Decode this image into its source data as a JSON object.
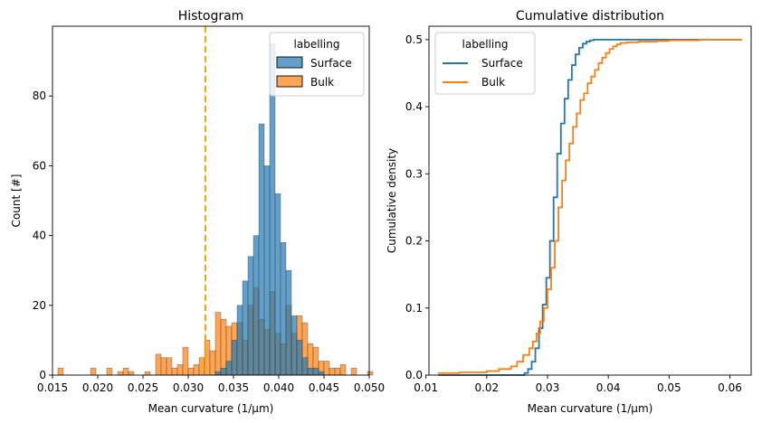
{
  "chart_data": [
    {
      "type": "histogram",
      "title": "Histogram",
      "xlabel": "Mean curvature (1/μm)",
      "ylabel": "Count [#]",
      "xlim": [
        0.015,
        0.05
      ],
      "ylim": [
        0,
        100
      ],
      "xticks": [
        "0.015",
        "0.020",
        "0.025",
        "0.030",
        "0.035",
        "0.040",
        "0.045",
        "0.050"
      ],
      "yticks": [
        "0",
        "20",
        "40",
        "60",
        "80"
      ],
      "bin_start": 0.0156,
      "bin_width": 0.0006,
      "legend": {
        "title": "labelling",
        "position": "upper right"
      },
      "reference_line": {
        "x": 0.0319,
        "color": "#f5a600",
        "style": "dashed"
      },
      "series": [
        {
          "name": "Surface",
          "color": "#1f77b4",
          "values": [
            0,
            0,
            0,
            0,
            0,
            0,
            0,
            0,
            0,
            0,
            0,
            0,
            0,
            0,
            0,
            0,
            0,
            0,
            0,
            0,
            0,
            0,
            0,
            0,
            0,
            0,
            0,
            0,
            0,
            1,
            2,
            4,
            10,
            20,
            27,
            34,
            40,
            72,
            60,
            95,
            52,
            38,
            30,
            17,
            10,
            5,
            2,
            2,
            1,
            0,
            0,
            0,
            0,
            0,
            0,
            0,
            0,
            0,
            0
          ]
        },
        {
          "name": "Bulk",
          "color": "#ff7f0e",
          "values": [
            2,
            0,
            0,
            0,
            0,
            0,
            2,
            0,
            0,
            2,
            0,
            1,
            2,
            1,
            0,
            0,
            1,
            0,
            6,
            5,
            5,
            2,
            3,
            8,
            2,
            3,
            5,
            10,
            7,
            18,
            16,
            14,
            15,
            15,
            10,
            20,
            25,
            16,
            13,
            24,
            12,
            9,
            20,
            12,
            17,
            15,
            9,
            8,
            4,
            4,
            2,
            2,
            3,
            0,
            2,
            0,
            0,
            1,
            0
          ]
        }
      ]
    },
    {
      "type": "line",
      "title": "Cumulative distribution",
      "xlabel": "Mean curvature (1/μm)",
      "ylabel": "Cumulative density",
      "xlim": [
        0.0105,
        0.0635
      ],
      "ylim": [
        0,
        0.52
      ],
      "xticks": [
        "0.01",
        "0.02",
        "0.03",
        "0.04",
        "0.05",
        "0.06"
      ],
      "yticks": [
        "0.0",
        "0.1",
        "0.2",
        "0.3",
        "0.4",
        "0.5"
      ],
      "legend": {
        "title": "labelling",
        "position": "upper left"
      },
      "series": [
        {
          "name": "Surface",
          "color": "#1f77b4",
          "x": [
            0.012,
            0.025,
            0.0262,
            0.0268,
            0.0274,
            0.028,
            0.0286,
            0.0292,
            0.0298,
            0.0304,
            0.031,
            0.0316,
            0.0322,
            0.0328,
            0.0334,
            0.034,
            0.0346,
            0.0352,
            0.0358,
            0.0364,
            0.037,
            0.0376,
            0.062
          ],
          "y": [
            0.0,
            0.0,
            0.003,
            0.009,
            0.02,
            0.04,
            0.07,
            0.105,
            0.145,
            0.2,
            0.265,
            0.33,
            0.375,
            0.412,
            0.44,
            0.462,
            0.478,
            0.488,
            0.494,
            0.497,
            0.499,
            0.5,
            0.5
          ]
        },
        {
          "name": "Bulk",
          "color": "#ff7f0e",
          "x": [
            0.012,
            0.0155,
            0.02,
            0.022,
            0.024,
            0.025,
            0.026,
            0.027,
            0.0276,
            0.0282,
            0.0288,
            0.0294,
            0.03,
            0.0306,
            0.0312,
            0.0318,
            0.0324,
            0.033,
            0.0336,
            0.0342,
            0.0348,
            0.0354,
            0.036,
            0.0366,
            0.0372,
            0.0378,
            0.0384,
            0.039,
            0.0396,
            0.0402,
            0.0408,
            0.0414,
            0.042,
            0.043,
            0.045,
            0.048,
            0.05,
            0.055,
            0.062
          ],
          "y": [
            0.003,
            0.004,
            0.006,
            0.009,
            0.013,
            0.02,
            0.03,
            0.04,
            0.05,
            0.062,
            0.08,
            0.1,
            0.128,
            0.16,
            0.2,
            0.25,
            0.29,
            0.32,
            0.345,
            0.37,
            0.39,
            0.41,
            0.42,
            0.435,
            0.445,
            0.455,
            0.465,
            0.473,
            0.48,
            0.486,
            0.49,
            0.493,
            0.495,
            0.496,
            0.497,
            0.498,
            0.499,
            0.5,
            0.5
          ]
        }
      ]
    }
  ]
}
